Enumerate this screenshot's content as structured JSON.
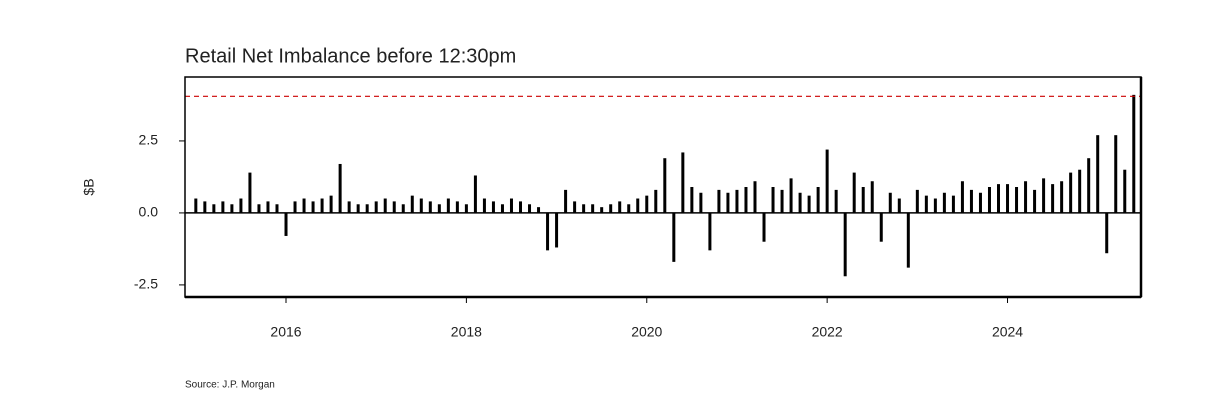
{
  "chart_data": {
    "type": "bar",
    "title": "Retail Net Imbalance before 12:30pm",
    "y_label": "$B",
    "source": "Source: J.P. Morgan",
    "x": [
      2015.0,
      2015.1,
      2015.2,
      2015.3,
      2015.4,
      2015.5,
      2015.6,
      2015.7,
      2015.8,
      2015.9,
      2016.0,
      2016.1,
      2016.2,
      2016.3,
      2016.4,
      2016.5,
      2016.6,
      2016.7,
      2016.8,
      2016.9,
      2017.0,
      2017.1,
      2017.2,
      2017.3,
      2017.4,
      2017.5,
      2017.6,
      2017.7,
      2017.8,
      2017.9,
      2018.0,
      2018.1,
      2018.2,
      2018.3,
      2018.4,
      2018.5,
      2018.6,
      2018.7,
      2018.8,
      2018.9,
      2019.0,
      2019.1,
      2019.2,
      2019.3,
      2019.4,
      2019.5,
      2019.6,
      2019.7,
      2019.8,
      2019.9,
      2020.0,
      2020.1,
      2020.2,
      2020.3,
      2020.4,
      2020.5,
      2020.6,
      2020.7,
      2020.8,
      2020.9,
      2021.0,
      2021.1,
      2021.2,
      2021.3,
      2021.4,
      2021.5,
      2021.6,
      2021.7,
      2021.8,
      2021.9,
      2022.0,
      2022.1,
      2022.2,
      2022.3,
      2022.4,
      2022.5,
      2022.6,
      2022.7,
      2022.8,
      2022.9,
      2023.0,
      2023.1,
      2023.2,
      2023.3,
      2023.4,
      2023.5,
      2023.6,
      2023.7,
      2023.8,
      2023.9,
      2024.0,
      2024.1,
      2024.2,
      2024.3,
      2024.4,
      2024.5,
      2024.6,
      2024.7,
      2024.8,
      2024.9,
      2025.0,
      2025.1,
      2025.2,
      2025.3,
      2025.4
    ],
    "values": [
      0.5,
      0.4,
      0.3,
      0.4,
      0.3,
      0.5,
      1.4,
      0.3,
      0.4,
      0.3,
      -0.8,
      0.4,
      0.5,
      0.4,
      0.5,
      0.6,
      1.7,
      0.4,
      0.3,
      0.3,
      0.4,
      0.5,
      0.4,
      0.3,
      0.6,
      0.5,
      0.4,
      0.3,
      0.5,
      0.4,
      0.3,
      1.3,
      0.5,
      0.4,
      0.3,
      0.5,
      0.4,
      0.3,
      0.2,
      -1.3,
      -1.2,
      0.8,
      0.4,
      0.3,
      0.3,
      0.2,
      0.3,
      0.4,
      0.3,
      0.5,
      0.6,
      0.8,
      1.9,
      -1.7,
      2.1,
      0.9,
      0.7,
      -1.3,
      0.8,
      0.7,
      0.8,
      0.9,
      1.1,
      -1.0,
      0.9,
      0.8,
      1.2,
      0.7,
      0.6,
      0.9,
      2.2,
      0.8,
      -2.2,
      1.4,
      0.9,
      1.1,
      -1.0,
      0.7,
      0.5,
      -1.9,
      0.8,
      0.6,
      0.5,
      0.7,
      0.6,
      1.1,
      0.8,
      0.7,
      0.9,
      1.0,
      1.0,
      0.9,
      1.1,
      0.8,
      1.2,
      1.0,
      1.1,
      1.4,
      1.5,
      1.9,
      2.7,
      -1.4,
      2.7,
      1.5,
      4.1
    ],
    "color": "#000000",
    "xlim": [
      2014.88,
      2025.48
    ],
    "xticks": [
      2016,
      2018,
      2020,
      2022,
      2024
    ],
    "ylim": [
      -2.92,
      4.72
    ],
    "yticks": [
      -2.5,
      {
        "value": 0,
        "label": "0.0"
      },
      2.5
    ],
    "reference_line": {
      "value": 4.05,
      "color": "#cc0000"
    },
    "grid": false
  }
}
